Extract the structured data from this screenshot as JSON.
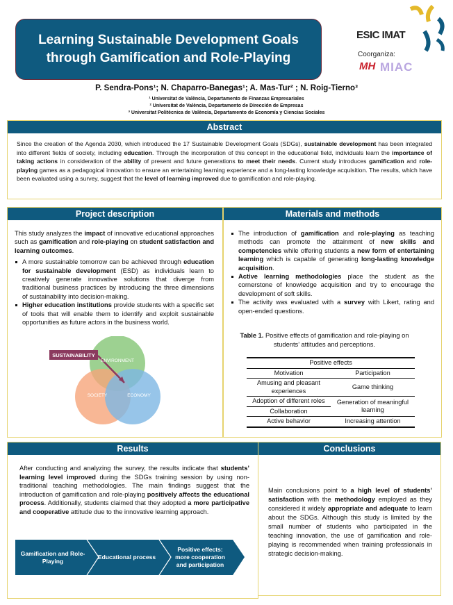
{
  "title": {
    "line1": "Learning Sustainable Development Goals",
    "line2": "through Gamification and Role-Playing"
  },
  "logos": {
    "main": "ESIC IMAT",
    "coorganiza": "Coorganiza:",
    "partner2": "MIAC"
  },
  "authors": "P. Sendra-Pons¹; N. Chaparro-Banegas¹; A. Mas-Tur² ; N. Roig-Tierno³",
  "affiliations": [
    "¹ Universitat de València, Departamento de Finanzas Empresariales",
    "² Universitat de València,  Departamento de Dirección de Empresas",
    "³ Universitat Politècnica de València, Departamento de Economía y Ciencias Sociales"
  ],
  "abstract": {
    "heading": "Abstract",
    "text": [
      {
        "t": "Since the creation of the Agenda 2030, which introduced the 17 Sustainable Development Goals (SDGs), "
      },
      {
        "t": "sustainable development",
        "b": 1
      },
      {
        "t": " has been integrated into different fields of society, including "
      },
      {
        "t": "education",
        "b": 1
      },
      {
        "t": ". Through the incorporation of this concept in the educational field, individuals learn the "
      },
      {
        "t": "importance of taking actions",
        "b": 1
      },
      {
        "t": " in consideration of the "
      },
      {
        "t": "ability",
        "b": 1
      },
      {
        "t": " of present and future generations "
      },
      {
        "t": "to meet their needs",
        "b": 1
      },
      {
        "t": ". Current study introduces "
      },
      {
        "t": "gamification",
        "b": 1
      },
      {
        "t": " and "
      },
      {
        "t": "role-playing",
        "b": 1
      },
      {
        "t": " games as a pedagogical innovation to ensure an entertaining learning experience and a long-lasting knowledge acquisition. The results, which have been evaluated using a survey, suggest that the "
      },
      {
        "t": "level of learning improved",
        "b": 1
      },
      {
        "t": " due to gamification and role-playing."
      }
    ]
  },
  "project": {
    "heading": "Project description",
    "intro": [
      {
        "t": "This study analyzes the "
      },
      {
        "t": "impact",
        "b": 1
      },
      {
        "t": " of innovative educational approaches such as "
      },
      {
        "t": "gamification",
        "b": 1
      },
      {
        "t": " and "
      },
      {
        "t": "role-playing",
        "b": 1
      },
      {
        "t": " on "
      },
      {
        "t": "student satisfaction and learning outcomes",
        "b": 1
      },
      {
        "t": "."
      }
    ],
    "bullets": [
      [
        {
          "t": "A more sustainable tomorrow can be achieved through "
        },
        {
          "t": "education for sustainable development",
          "b": 1
        },
        {
          "t": " (ESD) as individuals learn to creatively generate innovative solutions that diverge from traditional business practices by introducing the three dimensions of sustainability into decision-making."
        }
      ],
      [
        {
          "t": "Higher education institutions",
          "b": 1
        },
        {
          "t": " provide students with a specific set of tools that will enable them to identify and exploit sustainable opportunities as future actors in the business world."
        }
      ]
    ],
    "diagram": {
      "callout": "SUSTAINABILITY",
      "environment": "ENVIRONMENT",
      "society": "SOCIETY",
      "economy": "ECONOMY",
      "colors": {
        "environment": "#8cc97e",
        "society": "#f6a57a",
        "economy": "#7db7e3",
        "callout": "#8b3a5e"
      }
    }
  },
  "methods": {
    "heading": "Materials and methods",
    "bullets": [
      [
        {
          "t": "The introduction of "
        },
        {
          "t": "gamification",
          "b": 1
        },
        {
          "t": " and "
        },
        {
          "t": "role-playing",
          "b": 1
        },
        {
          "t": " as teaching methods can promote the attainment of "
        },
        {
          "t": "new skills and competencies",
          "b": 1
        },
        {
          "t": " while offering students "
        },
        {
          "t": "a new form of entertaining learning",
          "b": 1
        },
        {
          "t": " which is capable of generating "
        },
        {
          "t": "long-lasting knowledge acquisition",
          "b": 1
        },
        {
          "t": "."
        }
      ],
      [
        {
          "t": "Active learning methodologies",
          "b": 1
        },
        {
          "t": " place the student as the cornerstone of knowledge acquisition and try to encourage the development of soft skills."
        }
      ],
      [
        {
          "t": "The activity was evaluated with a "
        },
        {
          "t": "survey",
          "b": 1
        },
        {
          "t": " with Likert, rating and open-ended questions."
        }
      ]
    ],
    "table": {
      "caption_label": "Table 1.",
      "caption": " Positive effects of gamification and role-playing on students’ attitudes and perceptions.",
      "header": "Positive effects",
      "col1": "Motivation",
      "col2": "Participation",
      "rows": [
        [
          "Amusing and pleasant experiences",
          "Game thinking"
        ],
        [
          "Adoption of different roles",
          "Generation of meaningful learning"
        ],
        [
          "Collaboration",
          ""
        ],
        [
          "Active behavior",
          "Increasing attention"
        ]
      ]
    }
  },
  "results": {
    "heading": "Results",
    "text": [
      {
        "t": "After conducting and analyzing the survey, the results indicate that "
      },
      {
        "t": "students’ learning level improved",
        "b": 1
      },
      {
        "t": " during the SDGs training session by using non-traditional teaching methodologies. The main findings suggest that the introduction of gamification and role-playing "
      },
      {
        "t": "positively affects the educational process",
        "b": 1
      },
      {
        "t": ". Additionally, students claimed that they adopted "
      },
      {
        "t": "a more participative and cooperative",
        "b": 1
      },
      {
        "t": " attitude due to the innovative learning approach."
      }
    ],
    "flow": [
      "Gamification and Role-Playing",
      "Educational process",
      "Positive effects: more cooperation and participation"
    ]
  },
  "conclusions": {
    "heading": "Conclusions",
    "text": [
      {
        "t": "Main conclusions point to "
      },
      {
        "t": "a high level of students’ satisfaction",
        "b": 1
      },
      {
        "t": " with the "
      },
      {
        "t": "methodology",
        "b": 1
      },
      {
        "t": " employed as they considered it widely "
      },
      {
        "t": "appropriate and adequate",
        "b": 1
      },
      {
        "t": " to learn about the SDGs. Although this study is limited by the small number of students who participated in the teaching innovation, the use of gamification and role-playing is recommended when training professionals in strategic decision-making."
      }
    ]
  },
  "colors": {
    "header": "#0f5a7f",
    "border": "#e6d36d"
  }
}
